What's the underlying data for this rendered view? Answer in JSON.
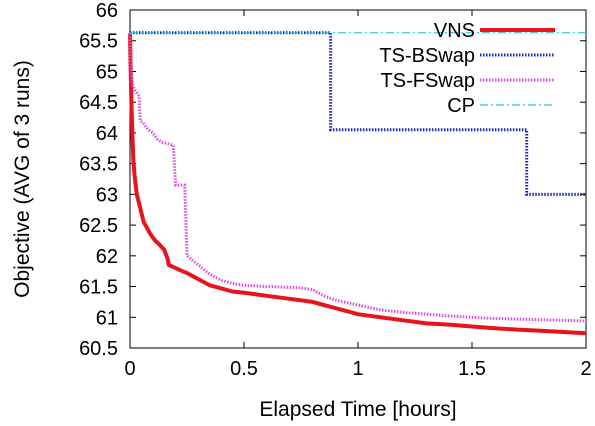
{
  "chart_data": {
    "type": "line",
    "title": "",
    "xlabel": "Elapsed Time [hours]",
    "ylabel": "Objective (AVG of 3 runs)",
    "xlim": [
      0,
      2
    ],
    "ylim": [
      60.5,
      66
    ],
    "xticks": [
      "0",
      "0.5",
      "1",
      "1.5",
      "2"
    ],
    "yticks": [
      "60.5",
      "61",
      "61.5",
      "62",
      "62.5",
      "63",
      "63.5",
      "64",
      "64.5",
      "65",
      "65.5",
      "66"
    ],
    "grid": false,
    "legend_position": "top-right",
    "series": [
      {
        "name": "VNS",
        "color": "#e8141c",
        "style": "solid-thick",
        "points": [
          [
            0,
            65.62
          ],
          [
            0.003,
            65.0
          ],
          [
            0.006,
            64.5
          ],
          [
            0.01,
            64.0
          ],
          [
            0.015,
            63.55
          ],
          [
            0.02,
            63.3
          ],
          [
            0.03,
            63.0
          ],
          [
            0.04,
            62.85
          ],
          [
            0.05,
            62.7
          ],
          [
            0.06,
            62.55
          ],
          [
            0.075,
            62.45
          ],
          [
            0.09,
            62.35
          ],
          [
            0.11,
            62.25
          ],
          [
            0.13,
            62.18
          ],
          [
            0.15,
            62.1
          ],
          [
            0.165,
            61.95
          ],
          [
            0.17,
            61.85
          ],
          [
            0.2,
            61.8
          ],
          [
            0.23,
            61.75
          ],
          [
            0.25,
            61.72
          ],
          [
            0.26,
            61.7
          ],
          [
            0.3,
            61.62
          ],
          [
            0.35,
            61.52
          ],
          [
            0.4,
            61.47
          ],
          [
            0.45,
            61.42
          ],
          [
            0.5,
            61.4
          ],
          [
            0.6,
            61.35
          ],
          [
            0.7,
            61.3
          ],
          [
            0.8,
            61.25
          ],
          [
            0.9,
            61.15
          ],
          [
            1.0,
            61.05
          ],
          [
            1.1,
            61.0
          ],
          [
            1.2,
            60.95
          ],
          [
            1.3,
            60.9
          ],
          [
            1.4,
            60.88
          ],
          [
            1.5,
            60.85
          ],
          [
            1.6,
            60.82
          ],
          [
            1.7,
            60.8
          ],
          [
            1.8,
            60.78
          ],
          [
            1.9,
            60.76
          ],
          [
            2.0,
            60.74
          ]
        ]
      },
      {
        "name": "TS-BSwap",
        "color": "#1c23b8",
        "style": "dotted",
        "points": [
          [
            0,
            65.63
          ],
          [
            0.88,
            65.63
          ],
          [
            0.88,
            64.05
          ],
          [
            1.74,
            64.05
          ],
          [
            1.74,
            63.0
          ],
          [
            2.0,
            63.0
          ]
        ]
      },
      {
        "name": "TS-FSwap",
        "color": "#d94fd9",
        "style": "dotted",
        "points": [
          [
            0,
            65.62
          ],
          [
            0.005,
            65.0
          ],
          [
            0.01,
            64.8
          ],
          [
            0.02,
            64.7
          ],
          [
            0.03,
            64.65
          ],
          [
            0.04,
            64.6
          ],
          [
            0.045,
            64.2
          ],
          [
            0.06,
            64.15
          ],
          [
            0.08,
            64.05
          ],
          [
            0.1,
            64.0
          ],
          [
            0.12,
            63.9
          ],
          [
            0.14,
            63.85
          ],
          [
            0.19,
            63.8
          ],
          [
            0.2,
            63.15
          ],
          [
            0.24,
            63.15
          ],
          [
            0.245,
            62.55
          ],
          [
            0.25,
            62.0
          ],
          [
            0.3,
            61.85
          ],
          [
            0.35,
            61.7
          ],
          [
            0.4,
            61.6
          ],
          [
            0.45,
            61.55
          ],
          [
            0.5,
            61.52
          ],
          [
            0.6,
            61.5
          ],
          [
            0.75,
            61.48
          ],
          [
            0.8,
            61.45
          ],
          [
            0.85,
            61.35
          ],
          [
            0.9,
            61.28
          ],
          [
            1.0,
            61.2
          ],
          [
            1.1,
            61.12
          ],
          [
            1.2,
            61.08
          ],
          [
            1.3,
            61.05
          ],
          [
            1.4,
            61.02
          ],
          [
            1.5,
            61.0
          ],
          [
            1.6,
            60.98
          ],
          [
            1.8,
            60.96
          ],
          [
            2.0,
            60.94
          ]
        ]
      },
      {
        "name": "CP",
        "color": "#2fc6d4",
        "style": "dash-dot",
        "points": [
          [
            0,
            65.63
          ],
          [
            2.0,
            65.63
          ]
        ]
      }
    ]
  }
}
